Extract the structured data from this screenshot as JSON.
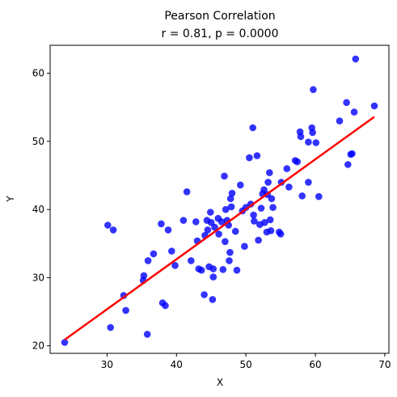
{
  "chart_data": {
    "type": "scatter",
    "title": "Pearson Correlation",
    "subtitle": "r = 0.81, p = 0.0000",
    "xlabel": "X",
    "ylabel": "Y",
    "xlim": [
      21.8,
      70.6
    ],
    "ylim": [
      18.9,
      64.1
    ],
    "xticks": [
      30,
      40,
      50,
      60,
      70
    ],
    "yticks": [
      20,
      30,
      40,
      50,
      60
    ],
    "grid": false,
    "point_color": "#0000ff",
    "line_color": "#ff0000",
    "fit_line": {
      "x": [
        23.9,
        68.5
      ],
      "y": [
        20.9,
        53.6
      ]
    },
    "points": [
      {
        "x": 23.9,
        "y": 20.5
      },
      {
        "x": 30.1,
        "y": 37.7
      },
      {
        "x": 30.5,
        "y": 22.7
      },
      {
        "x": 30.9,
        "y": 37.0
      },
      {
        "x": 32.4,
        "y": 27.4
      },
      {
        "x": 32.7,
        "y": 25.2
      },
      {
        "x": 35.2,
        "y": 29.6
      },
      {
        "x": 35.3,
        "y": 30.3
      },
      {
        "x": 35.8,
        "y": 21.7
      },
      {
        "x": 35.9,
        "y": 32.5
      },
      {
        "x": 36.7,
        "y": 33.5
      },
      {
        "x": 37.8,
        "y": 37.9
      },
      {
        "x": 38.0,
        "y": 26.3
      },
      {
        "x": 38.4,
        "y": 25.9
      },
      {
        "x": 38.8,
        "y": 37.0
      },
      {
        "x": 39.3,
        "y": 33.9
      },
      {
        "x": 39.8,
        "y": 31.8
      },
      {
        "x": 41.0,
        "y": 38.4
      },
      {
        "x": 41.5,
        "y": 42.6
      },
      {
        "x": 42.1,
        "y": 32.5
      },
      {
        "x": 42.8,
        "y": 38.2
      },
      {
        "x": 43.0,
        "y": 35.4
      },
      {
        "x": 43.2,
        "y": 31.3
      },
      {
        "x": 43.6,
        "y": 31.1
      },
      {
        "x": 44.0,
        "y": 27.5
      },
      {
        "x": 44.1,
        "y": 36.2
      },
      {
        "x": 44.4,
        "y": 38.4
      },
      {
        "x": 44.5,
        "y": 37.0
      },
      {
        "x": 44.7,
        "y": 31.6
      },
      {
        "x": 44.9,
        "y": 39.6
      },
      {
        "x": 45.0,
        "y": 38.1
      },
      {
        "x": 45.2,
        "y": 26.8
      },
      {
        "x": 45.3,
        "y": 31.3
      },
      {
        "x": 45.3,
        "y": 30.1
      },
      {
        "x": 45.5,
        "y": 37.4
      },
      {
        "x": 46.0,
        "y": 38.7
      },
      {
        "x": 46.1,
        "y": 36.4
      },
      {
        "x": 46.5,
        "y": 38.2
      },
      {
        "x": 46.7,
        "y": 31.2
      },
      {
        "x": 46.9,
        "y": 44.9
      },
      {
        "x": 47.0,
        "y": 35.3
      },
      {
        "x": 47.1,
        "y": 40.0
      },
      {
        "x": 47.3,
        "y": 38.4
      },
      {
        "x": 47.5,
        "y": 37.7
      },
      {
        "x": 47.6,
        "y": 32.5
      },
      {
        "x": 47.7,
        "y": 33.7
      },
      {
        "x": 47.8,
        "y": 41.6
      },
      {
        "x": 47.9,
        "y": 40.4
      },
      {
        "x": 48.0,
        "y": 42.4
      },
      {
        "x": 48.5,
        "y": 36.8
      },
      {
        "x": 48.7,
        "y": 31.1
      },
      {
        "x": 49.2,
        "y": 43.6
      },
      {
        "x": 49.5,
        "y": 39.8
      },
      {
        "x": 49.8,
        "y": 34.6
      },
      {
        "x": 50.0,
        "y": 40.3
      },
      {
        "x": 50.5,
        "y": 47.6
      },
      {
        "x": 50.7,
        "y": 40.8
      },
      {
        "x": 51.0,
        "y": 52.0
      },
      {
        "x": 51.1,
        "y": 39.2
      },
      {
        "x": 51.2,
        "y": 38.3
      },
      {
        "x": 51.6,
        "y": 47.9
      },
      {
        "x": 51.8,
        "y": 35.5
      },
      {
        "x": 52.0,
        "y": 37.8
      },
      {
        "x": 52.2,
        "y": 40.2
      },
      {
        "x": 52.4,
        "y": 42.3
      },
      {
        "x": 52.6,
        "y": 42.9
      },
      {
        "x": 52.7,
        "y": 38.1
      },
      {
        "x": 53.0,
        "y": 36.7
      },
      {
        "x": 53.1,
        "y": 42.2
      },
      {
        "x": 53.2,
        "y": 44.0
      },
      {
        "x": 53.4,
        "y": 45.4
      },
      {
        "x": 53.5,
        "y": 38.5
      },
      {
        "x": 53.6,
        "y": 36.9
      },
      {
        "x": 53.7,
        "y": 41.6
      },
      {
        "x": 53.9,
        "y": 40.3
      },
      {
        "x": 54.8,
        "y": 36.7
      },
      {
        "x": 55.0,
        "y": 36.4
      },
      {
        "x": 55.1,
        "y": 44.0
      },
      {
        "x": 55.9,
        "y": 46.0
      },
      {
        "x": 56.2,
        "y": 43.3
      },
      {
        "x": 57.1,
        "y": 47.2
      },
      {
        "x": 57.4,
        "y": 47.0
      },
      {
        "x": 57.8,
        "y": 51.4
      },
      {
        "x": 57.9,
        "y": 50.7
      },
      {
        "x": 58.1,
        "y": 42.0
      },
      {
        "x": 59.0,
        "y": 44.0
      },
      {
        "x": 59.0,
        "y": 49.9
      },
      {
        "x": 59.5,
        "y": 52.0
      },
      {
        "x": 59.6,
        "y": 51.3
      },
      {
        "x": 59.7,
        "y": 57.6
      },
      {
        "x": 60.1,
        "y": 49.8
      },
      {
        "x": 60.5,
        "y": 41.9
      },
      {
        "x": 63.5,
        "y": 53.0
      },
      {
        "x": 64.5,
        "y": 55.7
      },
      {
        "x": 64.7,
        "y": 46.6
      },
      {
        "x": 65.1,
        "y": 48.1
      },
      {
        "x": 65.3,
        "y": 48.2
      },
      {
        "x": 65.6,
        "y": 54.3
      },
      {
        "x": 65.8,
        "y": 62.1
      },
      {
        "x": 68.5,
        "y": 55.2
      }
    ]
  }
}
